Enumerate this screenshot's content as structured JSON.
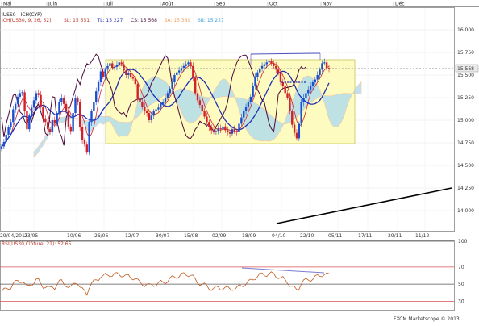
{
  "months": [
    "Mai",
    "Juin",
    "Juil",
    "Août",
    "Sep",
    "Oct",
    "Nov",
    "Déc"
  ],
  "indicator_title": "IUSS0 - ICH(CYP)",
  "legend": [
    {
      "text": "ICH(US30, 9, 26, 52)",
      "color": "#c0392b"
    },
    {
      "text": "SL: 15 551",
      "color": "#c0392b"
    },
    {
      "text": "TL: 15 227",
      "color": "#1f2fb0"
    },
    {
      "text": "CS: 15 568",
      "color": "#4a0a3a"
    },
    {
      "text": "SA: 15 389",
      "color": "#f0a060"
    },
    {
      "text": "SB: 15 227",
      "color": "#3aa0d8"
    }
  ],
  "price_axis": [
    "16 000",
    "15 750",
    "15 500",
    "15 250",
    "15 000",
    "14 750",
    "14 500",
    "14 250",
    "14 000"
  ],
  "last_price": "15 568",
  "date_axis": [
    "29/04/2013",
    "23/05",
    "10/06",
    "26/06",
    "12/07",
    "30/07",
    "15/08",
    "02/09",
    "18/09",
    "04/10",
    "22/10",
    "05/11",
    "17/11",
    "29/11",
    "11/12"
  ],
  "rsi_title": "RSI(US30,Clôture, 21): 52.65",
  "rsi_axis": [
    "100",
    "70",
    "50",
    "30"
  ],
  "footer": "FXCM Marketscope © 2013",
  "colors": {
    "bull": "#1a4fd0",
    "bear": "#d0202a",
    "tenkan": "#d0202a",
    "kijun": "#1f2fb0",
    "chikou": "#4a0a3a",
    "cloud_up": "#a8d8f0",
    "cloud_down": "#f8c8a0",
    "highlight": "#fdfbc0"
  },
  "chart_data": {
    "type": "candlestick",
    "instrument": "US30",
    "indicators": [
      "Ichimoku(9,26,52)",
      "RSI(21)"
    ],
    "ylim": [
      13800,
      16250
    ],
    "yticks": [
      14000,
      14250,
      14500,
      14750,
      15000,
      15250,
      15500,
      15750,
      16000
    ],
    "last_value": 15568,
    "ichimoku_values": {
      "SL": 15551,
      "TL": 15227,
      "CS": 15568,
      "SA": 15389,
      "SB": 15227
    },
    "rsi": {
      "value": 52.65,
      "period": 21,
      "levels": [
        30,
        50,
        70,
        100
      ],
      "ylim": [
        20,
        100
      ]
    },
    "ohlc_close": [
      14710,
      14760,
      14840,
      14920,
      14980,
      15120,
      15180,
      15260,
      15300,
      15310,
      15100,
      14900,
      15050,
      15140,
      15220,
      15300,
      15280,
      15150,
      15020,
      14980,
      14900,
      14870,
      15000,
      14960,
      15080,
      15200,
      15250,
      15180,
      15100,
      14930,
      14880,
      15080,
      15240,
      15200,
      14920,
      14780,
      14730,
      14650,
      14980,
      15100,
      15200,
      15320,
      15420,
      15540,
      15480,
      15560,
      15600,
      15630,
      15580,
      15590,
      15610,
      15640,
      15620,
      15550,
      15500,
      15520,
      15480,
      15460,
      15400,
      15250,
      15200,
      15150,
      15100,
      15080,
      15000,
      15050,
      15100,
      15120,
      15140,
      15180,
      15200,
      15250,
      15300,
      15350,
      15420,
      15500,
      15530,
      15550,
      15580,
      15600,
      15620,
      15640,
      15600,
      15470,
      15300,
      15220,
      15170,
      15100,
      15040,
      14980,
      14920,
      14890,
      14870,
      14880,
      14910,
      14900,
      14930,
      14890,
      14870,
      14850,
      14900,
      14880,
      14870,
      14960,
      15030,
      15100,
      15150,
      15200,
      15260,
      15380,
      15480,
      15530,
      15570,
      15600,
      15620,
      15640,
      15660,
      15630,
      15600,
      15560,
      15520,
      15420,
      15380,
      15300,
      15250,
      15100,
      14950,
      14860,
      14800,
      14960,
      15200,
      15250,
      15300,
      15340,
      15380,
      15420,
      15450,
      15500,
      15560,
      15630,
      15640,
      15580,
      15568
    ]
  }
}
